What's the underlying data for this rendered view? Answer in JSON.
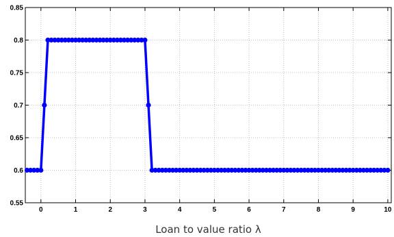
{
  "chart_data": {
    "type": "line",
    "title": "",
    "xlabel": "Loan to value ratio λ",
    "ylabel": "",
    "xlim": [
      -0.45,
      10.1
    ],
    "ylim": [
      0.55,
      0.85
    ],
    "x_ticks": [
      "0",
      "1",
      "2",
      "3",
      "4",
      "5",
      "6",
      "7",
      "8",
      "9",
      "10"
    ],
    "y_ticks": [
      "0.55",
      "0.6",
      "0.65",
      "0.7",
      "0.75",
      "0.8",
      "0.85"
    ],
    "grid": true,
    "line_color": "#0000ff",
    "series": [
      {
        "x": [
          -0.4,
          0.0,
          0.1,
          0.2,
          3.0,
          3.1,
          3.2,
          10.0
        ],
        "y": [
          0.6,
          0.6,
          0.7,
          0.8,
          0.8,
          0.7,
          0.6,
          0.6
        ]
      }
    ]
  }
}
